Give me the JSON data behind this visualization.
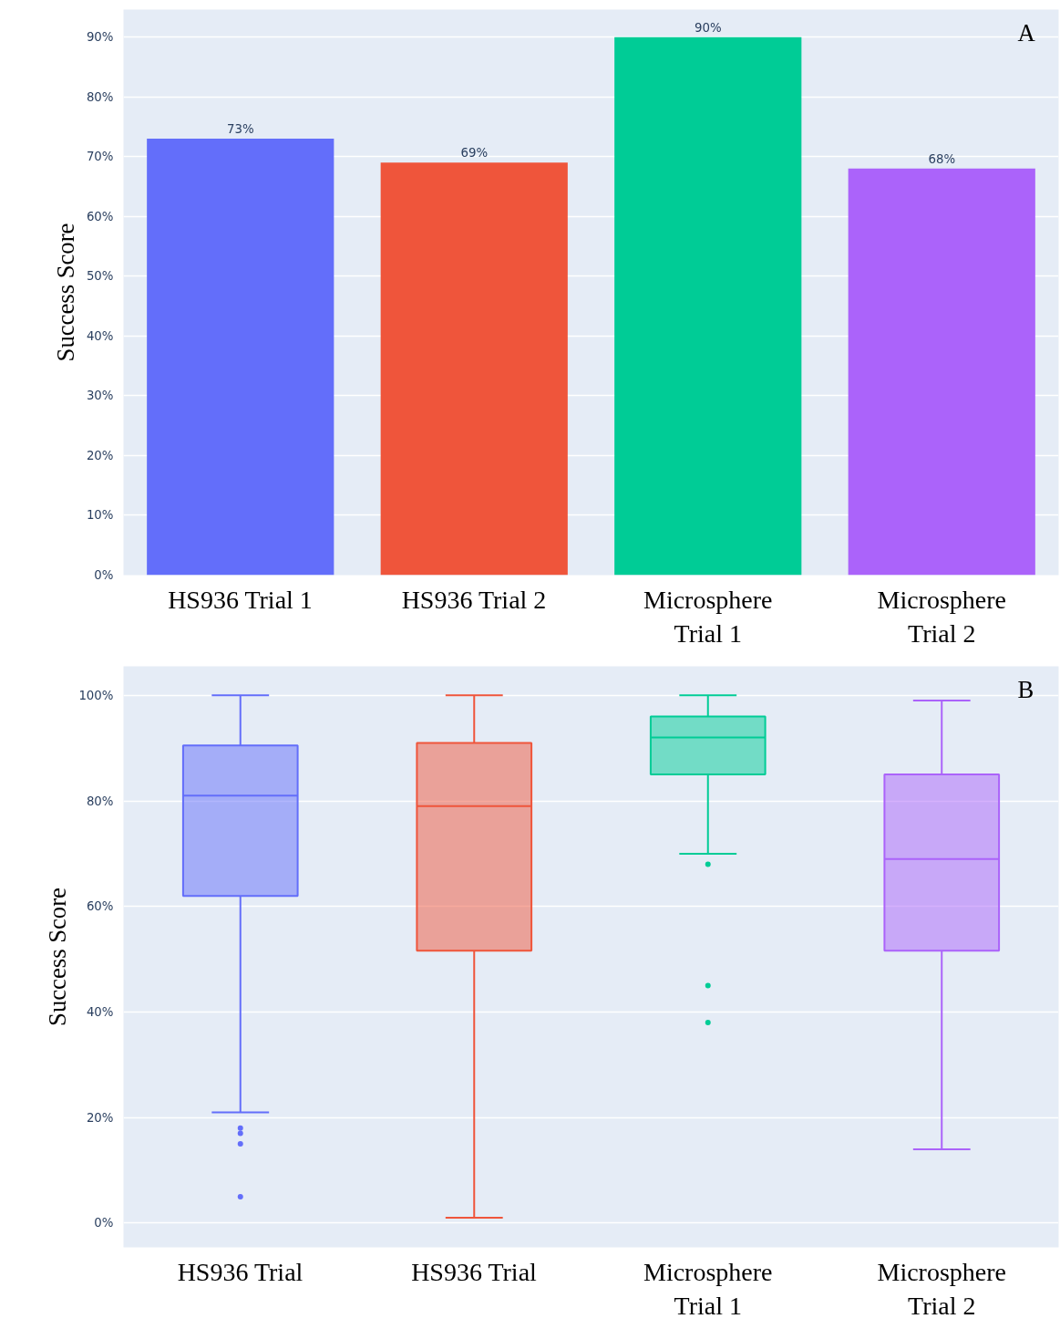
{
  "chart_data": [
    {
      "type": "bar",
      "ylabel": "Success Score",
      "categories": [
        "HS936 Trial 1",
        "HS936 Trial 2",
        "Microsphere Trial 1",
        "Microsphere Trial 2"
      ],
      "values": [
        73,
        69,
        90,
        68
      ],
      "colors": [
        "#636efa",
        "#ef553b",
        "#00cc96",
        "#ab63fa"
      ],
      "value_labels": [
        "73%",
        "69%",
        "90%",
        "68%"
      ],
      "ylim": [
        0,
        94.6
      ],
      "yticks": [
        {
          "value": 0,
          "label": "0%"
        },
        {
          "value": 10,
          "label": "10%"
        },
        {
          "value": 20,
          "label": "20%"
        },
        {
          "value": 30,
          "label": "30%"
        },
        {
          "value": 40,
          "label": "40%"
        },
        {
          "value": 50,
          "label": "50%"
        },
        {
          "value": 60,
          "label": "60%"
        },
        {
          "value": 70,
          "label": "70%"
        },
        {
          "value": 80,
          "label": "80%"
        },
        {
          "value": 90,
          "label": "90%"
        }
      ],
      "grid": "y",
      "annotations": [
        "A"
      ]
    },
    {
      "type": "box",
      "ylabel": "Success Score",
      "categories": [
        "HS936 Trial",
        "HS936 Trial",
        "Microsphere Trial 1",
        "Microsphere Trial 2"
      ],
      "series": [
        {
          "color": "#636efa",
          "boxes": [
            {
              "low": 21,
              "q1": 62,
              "median": 81,
              "q3": 90.5,
              "high": 100,
              "outliers": [
                18,
                17,
                15,
                5
              ]
            },
            null,
            null,
            null
          ]
        },
        {
          "color": "#ef553b",
          "boxes": [
            null,
            {
              "low": 1,
              "q1": 51.6,
              "median": 79,
              "q3": 91,
              "high": 100
            },
            null,
            null
          ]
        },
        {
          "color": "#00cc96",
          "boxes": [
            null,
            null,
            {
              "low": 70,
              "q1": 85,
              "median": 92,
              "q3": 96,
              "high": 100,
              "outliers": [
                68,
                45,
                38
              ]
            },
            null
          ]
        },
        {
          "color": "#ab63fa",
          "boxes": [
            null,
            null,
            null,
            {
              "low": 14,
              "q1": 51.6,
              "median": 69,
              "q3": 85,
              "high": 99
            }
          ]
        }
      ],
      "ylim": [
        -4.6,
        105.5
      ],
      "yticks": [
        {
          "value": 0,
          "label": "0%"
        },
        {
          "value": 20,
          "label": "20%"
        },
        {
          "value": 40,
          "label": "40%"
        },
        {
          "value": 60,
          "label": "60%"
        },
        {
          "value": 80,
          "label": "80%"
        },
        {
          "value": 100,
          "label": "100%"
        }
      ],
      "grid": "y",
      "annotations": [
        "B"
      ]
    }
  ]
}
